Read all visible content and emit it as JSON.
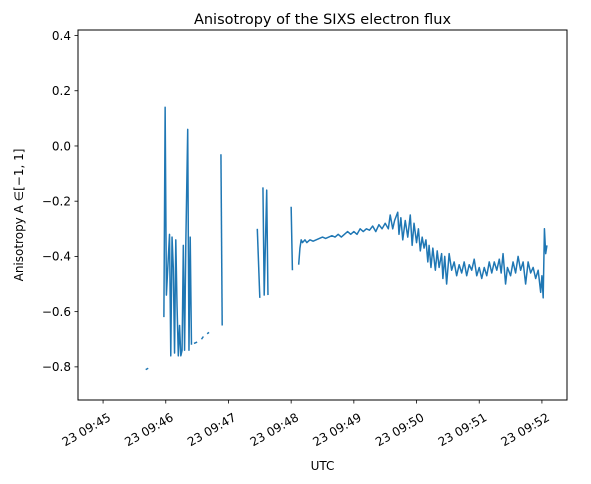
{
  "chart_data": {
    "type": "line",
    "title": "Anisotropy of the SIXS electron flux",
    "xlabel": "UTC",
    "ylabel": "Anisotropy A ∈[−1, 1]",
    "x_ticks": [
      "23 09:45",
      "23 09:46",
      "23 09:47",
      "23 09:48",
      "23 09:49",
      "23 09:50",
      "23 09:51",
      "23 09:52"
    ],
    "y_ticks": [
      "−0.8",
      "−0.6",
      "−0.4",
      "−0.2",
      "0.0",
      "0.2",
      "0.4"
    ],
    "xlim": [
      -0.4,
      7.4
    ],
    "ylim": [
      -0.92,
      0.42
    ],
    "grid": false,
    "line_color": "#1f77b4",
    "series": [
      {
        "segments": [
          [
            [
              0.68,
              -0.81
            ],
            [
              0.72,
              -0.805
            ]
          ],
          [
            [
              0.97,
              -0.62
            ],
            [
              0.99,
              0.14
            ],
            [
              1.01,
              -0.54
            ],
            [
              1.03,
              -0.45
            ],
            [
              1.06,
              -0.32
            ],
            [
              1.08,
              -0.76
            ],
            [
              1.1,
              -0.33
            ],
            [
              1.12,
              -0.44
            ],
            [
              1.14,
              -0.75
            ],
            [
              1.16,
              -0.34
            ],
            [
              1.18,
              -0.58
            ],
            [
              1.2,
              -0.76
            ],
            [
              1.22,
              -0.65
            ],
            [
              1.24,
              -0.76
            ],
            [
              1.26,
              -0.74
            ],
            [
              1.28,
              -0.36
            ],
            [
              1.3,
              -0.74
            ],
            [
              1.32,
              -0.35
            ],
            [
              1.35,
              0.06
            ],
            [
              1.37,
              -0.74
            ],
            [
              1.39,
              -0.33
            ],
            [
              1.41,
              -0.72
            ]
          ],
          [
            [
              1.45,
              -0.715
            ],
            [
              1.5,
              -0.71
            ]
          ],
          [
            [
              1.57,
              -0.7
            ],
            [
              1.6,
              -0.69
            ]
          ],
          [
            [
              1.66,
              -0.68
            ],
            [
              1.69,
              -0.675
            ]
          ],
          [
            [
              1.88,
              -0.03
            ],
            [
              1.9,
              -0.65
            ]
          ],
          [
            [
              2.46,
              -0.3
            ],
            [
              2.5,
              -0.55
            ]
          ],
          [
            [
              2.55,
              -0.15
            ],
            [
              2.57,
              -0.54
            ],
            [
              2.61,
              -0.16
            ],
            [
              2.63,
              -0.54
            ]
          ],
          [
            [
              3.0,
              -0.22
            ],
            [
              3.02,
              -0.45
            ]
          ],
          [
            [
              3.12,
              -0.43
            ],
            [
              3.14,
              -0.37
            ],
            [
              3.16,
              -0.34
            ],
            [
              3.18,
              -0.35
            ],
            [
              3.22,
              -0.34
            ],
            [
              3.25,
              -0.35
            ],
            [
              3.3,
              -0.34
            ],
            [
              3.35,
              -0.345
            ],
            [
              3.4,
              -0.34
            ],
            [
              3.45,
              -0.335
            ],
            [
              3.5,
              -0.33
            ],
            [
              3.55,
              -0.335
            ],
            [
              3.6,
              -0.33
            ],
            [
              3.65,
              -0.325
            ],
            [
              3.7,
              -0.33
            ],
            [
              3.75,
              -0.32
            ],
            [
              3.8,
              -0.33
            ],
            [
              3.85,
              -0.32
            ],
            [
              3.9,
              -0.31
            ],
            [
              3.95,
              -0.32
            ],
            [
              4.0,
              -0.31
            ],
            [
              4.05,
              -0.32
            ],
            [
              4.1,
              -0.3
            ],
            [
              4.15,
              -0.31
            ],
            [
              4.2,
              -0.3
            ],
            [
              4.25,
              -0.305
            ],
            [
              4.3,
              -0.29
            ],
            [
              4.35,
              -0.31
            ],
            [
              4.4,
              -0.285
            ],
            [
              4.45,
              -0.3
            ],
            [
              4.5,
              -0.28
            ],
            [
              4.55,
              -0.3
            ],
            [
              4.58,
              -0.25
            ],
            [
              4.62,
              -0.3
            ],
            [
              4.65,
              -0.27
            ],
            [
              4.7,
              -0.24
            ],
            [
              4.72,
              -0.32
            ],
            [
              4.75,
              -0.26
            ],
            [
              4.78,
              -0.34
            ],
            [
              4.82,
              -0.27
            ],
            [
              4.86,
              -0.33
            ],
            [
              4.9,
              -0.25
            ],
            [
              4.93,
              -0.36
            ],
            [
              4.96,
              -0.28
            ],
            [
              5.0,
              -0.35
            ],
            [
              5.03,
              -0.3
            ],
            [
              5.06,
              -0.38
            ],
            [
              5.09,
              -0.33
            ],
            [
              5.12,
              -0.37
            ],
            [
              5.15,
              -0.34
            ],
            [
              5.18,
              -0.42
            ],
            [
              5.2,
              -0.36
            ],
            [
              5.23,
              -0.44
            ],
            [
              5.26,
              -0.37
            ],
            [
              5.3,
              -0.45
            ],
            [
              5.33,
              -0.38
            ],
            [
              5.36,
              -0.44
            ],
            [
              5.4,
              -0.39
            ],
            [
              5.42,
              -0.48
            ],
            [
              5.45,
              -0.4
            ],
            [
              5.48,
              -0.5
            ],
            [
              5.52,
              -0.39
            ],
            [
              5.56,
              -0.45
            ],
            [
              5.6,
              -0.42
            ],
            [
              5.64,
              -0.47
            ],
            [
              5.68,
              -0.43
            ],
            [
              5.72,
              -0.46
            ],
            [
              5.76,
              -0.42
            ],
            [
              5.8,
              -0.47
            ],
            [
              5.84,
              -0.43
            ],
            [
              5.88,
              -0.45
            ],
            [
              5.92,
              -0.41
            ],
            [
              5.96,
              -0.47
            ],
            [
              6.0,
              -0.44
            ],
            [
              6.04,
              -0.48
            ],
            [
              6.08,
              -0.44
            ],
            [
              6.12,
              -0.47
            ],
            [
              6.16,
              -0.42
            ],
            [
              6.2,
              -0.46
            ],
            [
              6.24,
              -0.42
            ],
            [
              6.28,
              -0.45
            ],
            [
              6.32,
              -0.41
            ],
            [
              6.35,
              -0.46
            ],
            [
              6.38,
              -0.39
            ],
            [
              6.42,
              -0.5
            ],
            [
              6.45,
              -0.44
            ],
            [
              6.5,
              -0.47
            ],
            [
              6.54,
              -0.42
            ],
            [
              6.58,
              -0.46
            ],
            [
              6.62,
              -0.4
            ],
            [
              6.66,
              -0.45
            ],
            [
              6.7,
              -0.42
            ],
            [
              6.74,
              -0.5
            ],
            [
              6.78,
              -0.42
            ],
            [
              6.82,
              -0.46
            ],
            [
              6.86,
              -0.44
            ],
            [
              6.9,
              -0.48
            ],
            [
              6.94,
              -0.45
            ],
            [
              6.98,
              -0.53
            ],
            [
              7.0,
              -0.47
            ],
            [
              7.02,
              -0.55
            ],
            [
              7.04,
              -0.3
            ],
            [
              7.06,
              -0.39
            ],
            [
              7.08,
              -0.36
            ]
          ]
        ]
      }
    ]
  }
}
